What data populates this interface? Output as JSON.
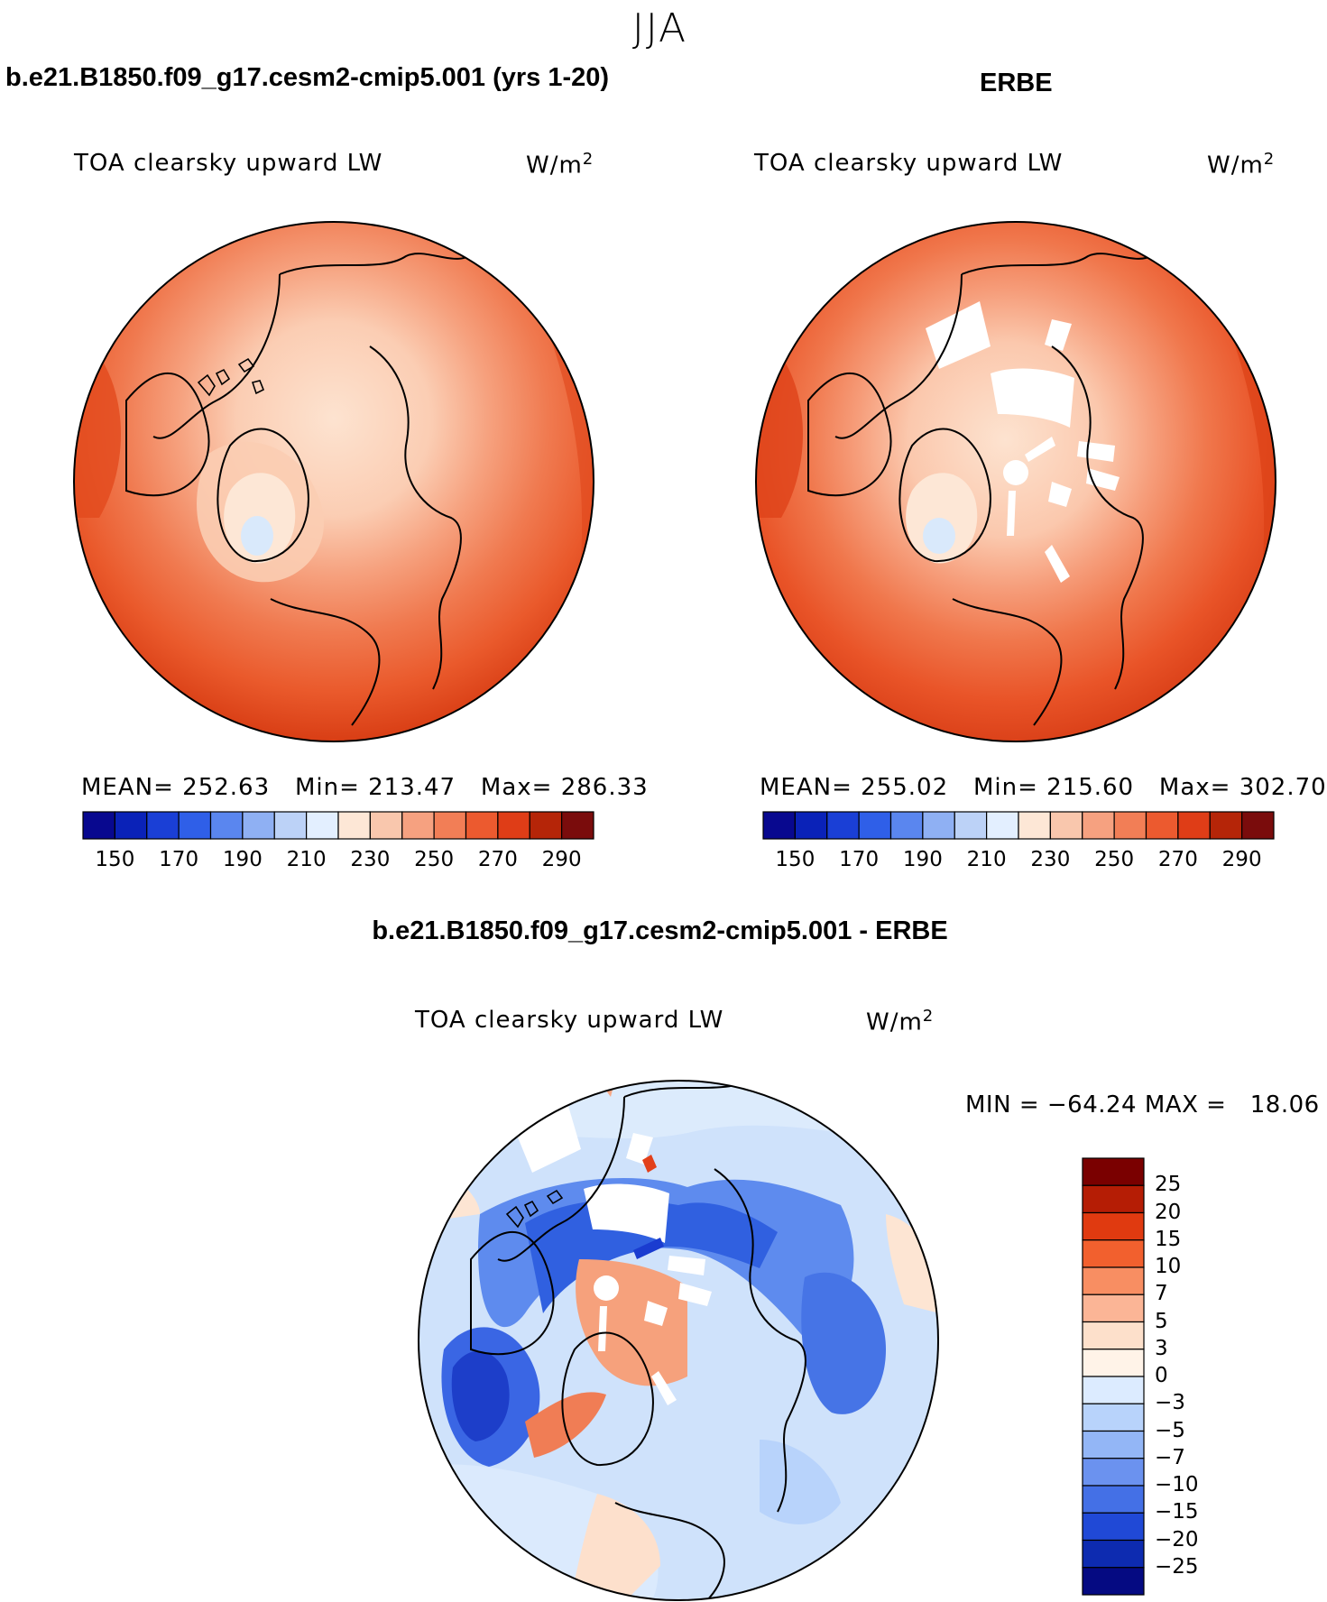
{
  "figure_title": "JJA",
  "panels": [
    {
      "title": "b.e21.B1850.f09_g17.cesm2-cmip5.001 (yrs 1-20)",
      "variable": "TOA clearsky upward LW",
      "units": "W/m",
      "units_sup": "2",
      "stats": {
        "mean_label": "MEAN=",
        "mean": "252.63",
        "min_label": "Min=",
        "min": "213.47",
        "max_label": "Max=",
        "max": "286.33"
      },
      "map_type": "north-polar-stereographic",
      "colorbar": {
        "colors": [
          "#08088f",
          "#0a22b8",
          "#1a3fd6",
          "#2f5fe8",
          "#5a86ef",
          "#8fb0f3",
          "#bcd2f7",
          "#e3efff",
          "#fde7d6",
          "#f9c7ad",
          "#f6a180",
          "#f27e56",
          "#ec5a2f",
          "#df3d17",
          "#b52508",
          "#7a0c0c"
        ],
        "tick_labels": [
          "150",
          "170",
          "190",
          "210",
          "230",
          "250",
          "270",
          "290"
        ]
      }
    },
    {
      "title": "ERBE",
      "variable": "TOA clearsky upward LW",
      "units": "W/m",
      "units_sup": "2",
      "stats": {
        "mean_label": "MEAN=",
        "mean": "255.02",
        "min_label": "Min=",
        "min": "215.60",
        "max_label": "Max=",
        "max": "302.70"
      },
      "map_type": "north-polar-stereographic",
      "colorbar": {
        "colors": [
          "#08088f",
          "#0a22b8",
          "#1a3fd6",
          "#2f5fe8",
          "#5a86ef",
          "#8fb0f3",
          "#bcd2f7",
          "#e3efff",
          "#fde7d6",
          "#f9c7ad",
          "#f6a180",
          "#f27e56",
          "#ec5a2f",
          "#df3d17",
          "#b52508",
          "#7a0c0c"
        ],
        "tick_labels": [
          "150",
          "170",
          "190",
          "210",
          "230",
          "250",
          "270",
          "290"
        ]
      }
    },
    {
      "title": "b.e21.B1850.f09_g17.cesm2-cmip5.001 - ERBE",
      "variable": "TOA clearsky upward LW",
      "units": "W/m",
      "units_sup": "2",
      "stats": {
        "min_label": "MIN =",
        "min": "−64.24",
        "max_label": "MAX =",
        "max": "18.06"
      },
      "map_type": "north-polar-stereographic",
      "colorbar": {
        "colors": [
          "#7a0000",
          "#b51d05",
          "#e03a10",
          "#f2602e",
          "#f88e62",
          "#fbb596",
          "#fde0cb",
          "#fff3e8",
          "#dcebff",
          "#b8d3fb",
          "#93b6f6",
          "#6b92ef",
          "#4470e6",
          "#2049d6",
          "#0d2bb0",
          "#050a82"
        ],
        "tick_labels": [
          "25",
          "20",
          "15",
          "10",
          "7",
          "5",
          "3",
          "0",
          "−3",
          "−5",
          "−7",
          "−10",
          "−15",
          "−20",
          "−25"
        ]
      }
    }
  ]
}
